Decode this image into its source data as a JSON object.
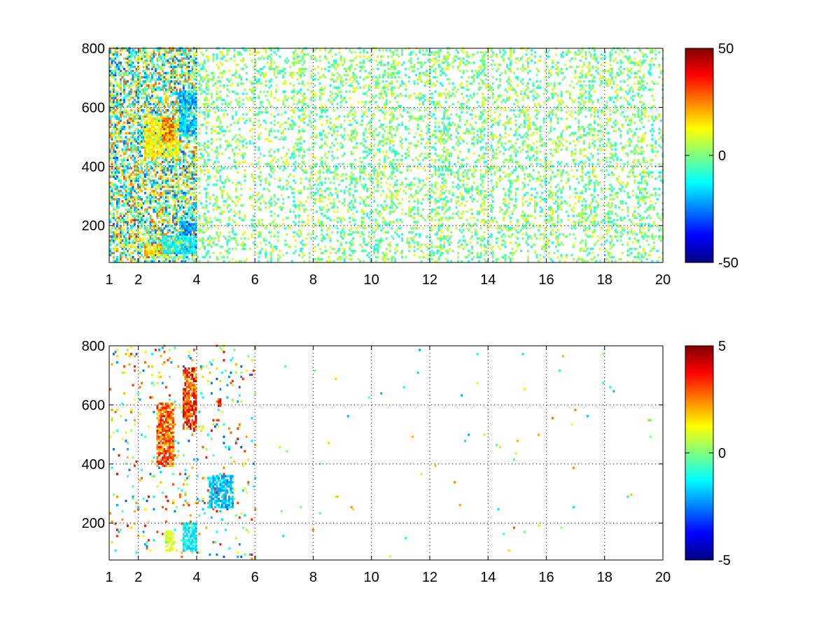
{
  "chart_data": [
    {
      "type": "heatmap",
      "title": "",
      "xlabel": "",
      "ylabel": "",
      "xlim": [
        1,
        20
      ],
      "ylim": [
        75,
        800
      ],
      "x_ticks": [
        1,
        2,
        4,
        6,
        8,
        10,
        12,
        14,
        16,
        18,
        20
      ],
      "y_ticks": [
        200,
        400,
        600,
        800
      ],
      "x_grid": [
        2,
        4,
        6,
        8,
        10,
        12,
        14,
        16,
        18,
        20
      ],
      "grid": true,
      "grid_style": "dotted",
      "colormap": "jet",
      "colorbar": {
        "min": -50,
        "max": 50,
        "ticks": [
          50,
          0,
          -50
        ],
        "placement": "right"
      },
      "description_blobs": [
        {
          "x": [
            2.2,
            3.4
          ],
          "y": [
            430,
            560
          ],
          "value": 15
        },
        {
          "x": [
            2.8,
            3.2
          ],
          "y": [
            480,
            560
          ],
          "value": 28
        },
        {
          "x": [
            3.4,
            4.0
          ],
          "y": [
            500,
            650
          ],
          "value": -22
        },
        {
          "x": [
            3.4,
            4.0
          ],
          "y": [
            160,
            210
          ],
          "value": -25
        },
        {
          "x": [
            2.2,
            3.0
          ],
          "y": [
            95,
            130
          ],
          "value": 18
        },
        {
          "x": [
            2.8,
            4.0
          ],
          "y": [
            100,
            160
          ],
          "value": -15
        }
      ],
      "density": {
        "x_break": 4.0,
        "dense_fraction": 0.55,
        "sparse_fraction": 0.22,
        "value_range_dense": [
          -30,
          30
        ],
        "value_range_sparse": [
          -12,
          12
        ]
      }
    },
    {
      "type": "heatmap",
      "title": "",
      "xlabel": "",
      "ylabel": "",
      "xlim": [
        1,
        20
      ],
      "ylim": [
        75,
        800
      ],
      "x_ticks": [
        1,
        2,
        4,
        6,
        8,
        10,
        12,
        14,
        16,
        18,
        20
      ],
      "y_ticks": [
        200,
        400,
        600,
        800
      ],
      "x_grid": [
        2,
        4,
        6,
        8,
        10,
        12,
        14,
        16,
        18,
        20
      ],
      "grid": true,
      "grid_style": "dotted",
      "colormap": "jet",
      "colorbar": {
        "min": -5,
        "max": 5,
        "ticks": [
          5,
          0,
          -5
        ],
        "placement": "right"
      },
      "description_blobs": [
        {
          "x": [
            2.6,
            3.2
          ],
          "y": [
            390,
            600
          ],
          "value": 3
        },
        {
          "x": [
            3.5,
            4.0
          ],
          "y": [
            510,
            720
          ],
          "value": 3.5
        },
        {
          "x": [
            2.9,
            3.2
          ],
          "y": [
            100,
            170
          ],
          "value": 1
        },
        {
          "x": [
            3.5,
            4.0
          ],
          "y": [
            100,
            200
          ],
          "value": -1.5
        },
        {
          "x": [
            4.4,
            5.2
          ],
          "y": [
            250,
            360
          ],
          "value": -2
        },
        {
          "x": [
            4.7,
            4.8
          ],
          "y": [
            590,
            620
          ],
          "value": 4
        }
      ],
      "density": {
        "x_break": 6.0,
        "dense_fraction": 0.05,
        "sparse_fraction": 0.003,
        "value_range_dense": [
          -3,
          4
        ],
        "value_range_sparse": [
          -2,
          3
        ]
      }
    }
  ]
}
